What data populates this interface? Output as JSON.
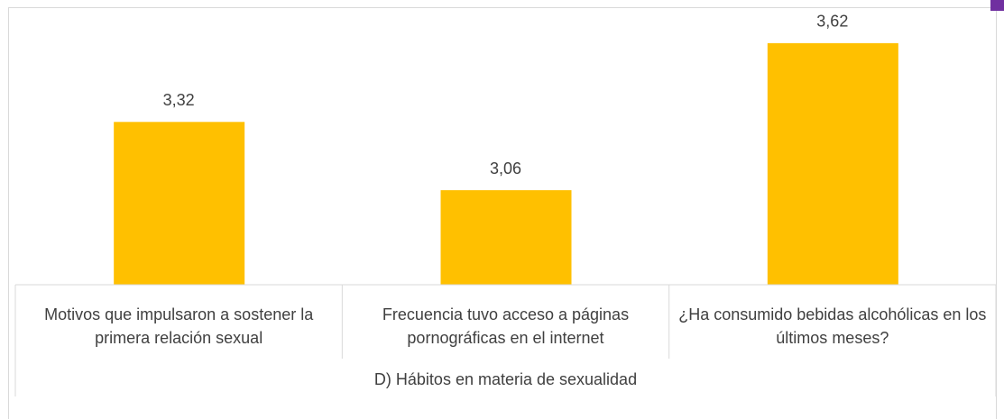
{
  "chart_data": {
    "type": "bar",
    "x_label": "D) Hábitos en materia de sexualidad",
    "categories": [
      "Motivos que impulsaron a sostener la primera relación sexual",
      "Frecuencia tuvo acceso a páginas pornográficas en el internet",
      "¿Ha consumido bebidas alcohólicas en los últimos meses?"
    ],
    "values": [
      3.32,
      3.06,
      3.62
    ],
    "value_labels": [
      "3,32",
      "3,06",
      "3,62"
    ],
    "color": "#ffc000",
    "ylim": [
      2.7,
      3.75
    ]
  }
}
